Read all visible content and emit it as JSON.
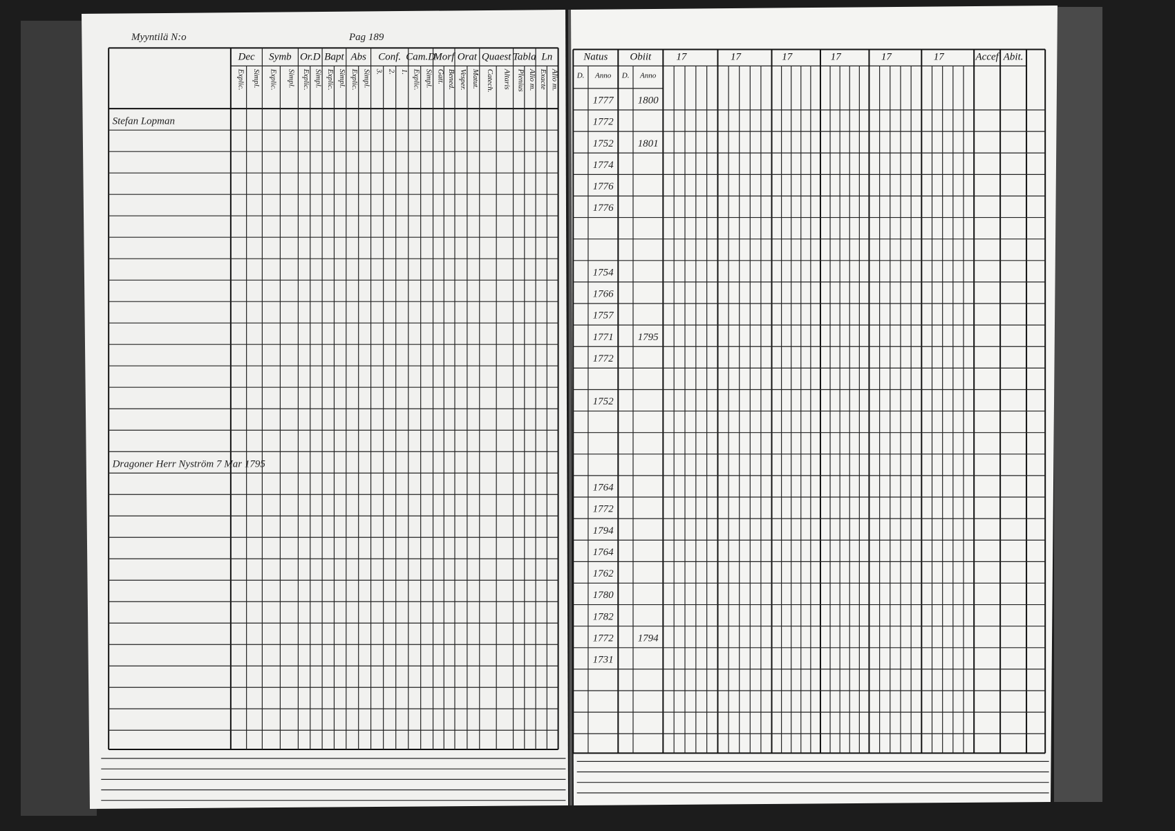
{
  "left_page": {
    "header": {
      "farm": "Myyntilä N:o",
      "page": "Pag 189"
    },
    "columns": [
      {
        "label": "Dec",
        "sub": [
          "Explic.",
          "Simpl."
        ]
      },
      {
        "label": "Symb",
        "sub": [
          "Explic.",
          "Simpl."
        ]
      },
      {
        "label": "Or.D",
        "sub": [
          "Explic.",
          "Simpl."
        ]
      },
      {
        "label": "Bapt",
        "sub": [
          "Explic.",
          "Simpl."
        ]
      },
      {
        "label": "Abs",
        "sub": [
          "Explic.",
          "Simpl."
        ]
      },
      {
        "label": "Conf.",
        "sub": [
          "3.",
          "2.",
          "1."
        ]
      },
      {
        "label": "Cam.D",
        "sub": [
          "Explic.",
          "Simpl."
        ]
      },
      {
        "label": "Morf",
        "sub": [
          "Gatt.",
          "Bened."
        ]
      },
      {
        "label": "Orat",
        "sub": [
          "Vesper.",
          "Matut."
        ]
      },
      {
        "label": "Quaest",
        "sub": [
          "Catech.",
          "Altaris"
        ]
      },
      {
        "label": "Tabla",
        "sub": [
          "Plenius",
          "Alio m."
        ]
      },
      {
        "label": "Ln",
        "sub": [
          "Exacte",
          "Alio m."
        ]
      }
    ],
    "entries": [
      "Stefan Lopman",
      "Dragoner Herr Nyström 7 Mar 1795"
    ]
  },
  "right_page": {
    "columns": [
      {
        "label": "Natus",
        "sub": [
          "D.",
          "Anno"
        ]
      },
      {
        "label": "Obiit",
        "sub": [
          "D.",
          "Anno"
        ]
      },
      {
        "label": "17"
      },
      {
        "label": "17"
      },
      {
        "label": "17"
      },
      {
        "label": "17"
      },
      {
        "label": "17"
      },
      {
        "label": "17"
      },
      {
        "label": "Accef"
      },
      {
        "label": "Abit."
      }
    ],
    "rows": [
      {
        "born": "1777",
        "died": "1800"
      },
      {
        "born": "1772"
      },
      {
        "born": "1752",
        "died": "1801"
      },
      {
        "born": "1774"
      },
      {
        "born": "1776"
      },
      {
        "born": "1776"
      },
      {
        "born": "1754"
      },
      {
        "born": "1766"
      },
      {
        "born": "1757"
      },
      {
        "born": "1771",
        "died": "1795"
      },
      {
        "born": "1772"
      },
      {
        "born": "1752"
      },
      {
        "born": "1764"
      },
      {
        "born": "1772"
      },
      {
        "born": "1794"
      },
      {
        "born": "1764"
      },
      {
        "born": "1762"
      },
      {
        "born": "1780"
      },
      {
        "born": "1782"
      },
      {
        "born": "1772",
        "died": "1794"
      },
      {
        "born": "1731"
      }
    ]
  }
}
